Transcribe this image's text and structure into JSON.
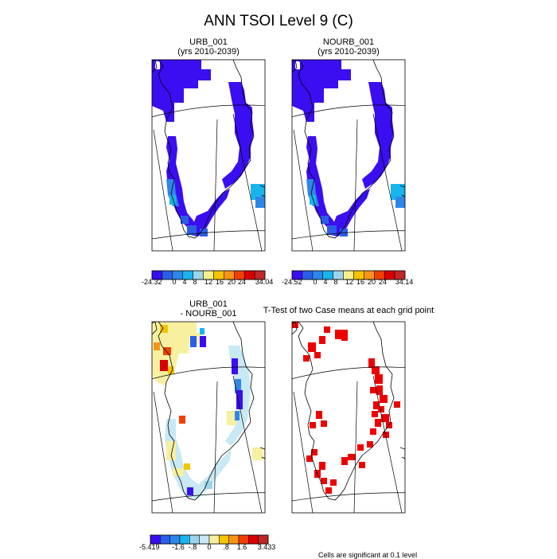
{
  "figure": {
    "title": "ANN TSOI Level 9 (C)"
  },
  "chart_data": [
    {
      "type": "heatmap",
      "name": "urb",
      "title": "URB_001",
      "subtitle": "(yrs 2010-2039)",
      "colorbar": {
        "min_label": "-24.32",
        "max_label": "34.04",
        "tick_labels": [
          "0",
          "4",
          "8",
          "12",
          "16",
          "20",
          "24"
        ],
        "colors": [
          "#3a0ef0",
          "#2a5ee6",
          "#2e86e8",
          "#18b4ec",
          "#9cd4ec",
          "#f6f08c",
          "#f6c400",
          "#f6941a",
          "#f04000",
          "#d90000",
          "#c02626"
        ]
      },
      "field_note": "annual soil temperature at level 9 over Greenland, mostly about -24 C (deep blue) with warmer (lighter blue) cells in the south"
    },
    {
      "type": "heatmap",
      "name": "nourb",
      "title": "NOURB_001",
      "subtitle": "(yrs 2010-2039)",
      "colorbar": {
        "min_label": "-24.52",
        "max_label": "34.14",
        "tick_labels": [
          "0",
          "4",
          "8",
          "12",
          "16",
          "20",
          "24"
        ],
        "colors": [
          "#3a0ef0",
          "#2a5ee6",
          "#2e86e8",
          "#18b4ec",
          "#9cd4ec",
          "#f6f08c",
          "#f6c400",
          "#f6941a",
          "#f04000",
          "#d90000",
          "#c02626"
        ]
      }
    },
    {
      "type": "heatmap",
      "name": "diff",
      "title": "URB_001",
      "subtitle": "- NOURB_001",
      "colorbar": {
        "min_label": "-5.419",
        "max_label": "3.433",
        "tick_labels": [
          "-1.6",
          "-.8",
          "0",
          ".8",
          "1.6"
        ],
        "colors": [
          "#3a0ef0",
          "#2a5ee6",
          "#2e86e8",
          "#18b4ec",
          "#9cd4ec",
          "#c8e8f4",
          "#f6f0a0",
          "#f6c400",
          "#f6941a",
          "#f04000",
          "#d90000",
          "#c02626"
        ]
      }
    },
    {
      "type": "heatmap",
      "name": "ttest",
      "title": "T-Test of two Case means at each grid point",
      "note": "red cells mark grid points where the difference is significant"
    }
  ],
  "footnote": "Cells are significant at 0.1 level"
}
